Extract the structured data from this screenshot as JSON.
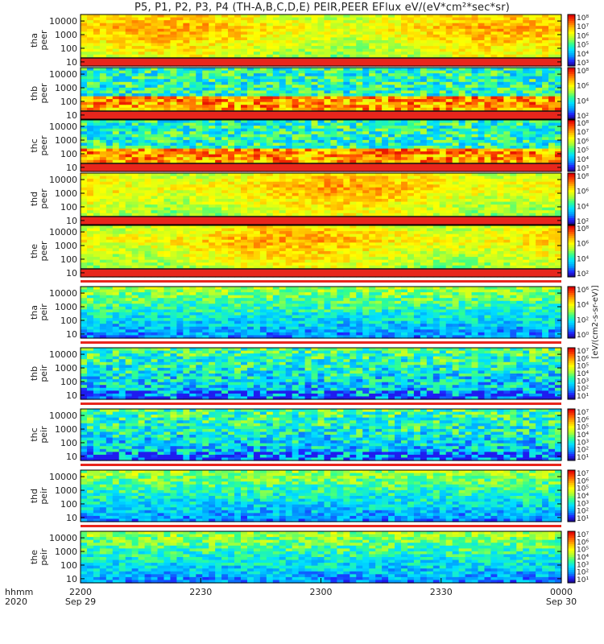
{
  "chart_data": {
    "type": "heatmap",
    "title": "P5, P1, P2, P3, P4 (TH-A,B,C,D,E) PEIR,PEER EFlux eV/(eV*cm²*sec*sr)",
    "colorbar_unit_label": "[eV/(cm2-s-sr-eV)]",
    "y_scale": "log",
    "y_ticks": [
      "10",
      "100",
      "1000",
      "10000"
    ],
    "x_axis": {
      "row_label_1": "hhmm",
      "row_label_2": "2020",
      "ticks": [
        {
          "time": "2200",
          "date": "Sep 29"
        },
        {
          "time": "2230",
          "date": ""
        },
        {
          "time": "2300",
          "date": ""
        },
        {
          "time": "2330",
          "date": ""
        },
        {
          "time": "0000",
          "date": "Sep 30"
        }
      ]
    },
    "panels": [
      {
        "probe": "tha",
        "species": "peer",
        "colorbar_ticks": [
          "10³",
          "10⁴",
          "10⁵",
          "10⁶",
          "10⁷",
          "10⁸"
        ],
        "spacecraft_potential_line": true
      },
      {
        "probe": "thb",
        "species": "peer",
        "colorbar_ticks": [
          "10²",
          "10⁴",
          "10⁶",
          "10⁸"
        ],
        "spacecraft_potential_line": true
      },
      {
        "probe": "thc",
        "species": "peer",
        "colorbar_ticks": [
          "10³",
          "10⁴",
          "10⁵",
          "10⁶",
          "10⁷",
          "10⁸"
        ],
        "spacecraft_potential_line": true
      },
      {
        "probe": "thd",
        "species": "peer",
        "colorbar_ticks": [
          "10²",
          "10⁴",
          "10⁶",
          "10⁸"
        ],
        "spacecraft_potential_line": true
      },
      {
        "probe": "the",
        "species": "peer",
        "colorbar_ticks": [
          "10²",
          "10⁴",
          "10⁶",
          "10⁸"
        ],
        "spacecraft_potential_line": true
      },
      {
        "probe": "tha",
        "species": "peir",
        "colorbar_ticks": [
          "10⁰",
          "10²",
          "10⁴",
          "10⁶"
        ],
        "spacecraft_potential_line": false
      },
      {
        "probe": "thb",
        "species": "peir",
        "colorbar_ticks": [
          "10¹",
          "10²",
          "10³",
          "10⁴",
          "10⁵",
          "10⁶",
          "10⁷"
        ],
        "spacecraft_potential_line": false
      },
      {
        "probe": "thc",
        "species": "peir",
        "colorbar_ticks": [
          "10¹",
          "10²",
          "10³",
          "10⁴",
          "10⁵",
          "10⁶",
          "10⁷"
        ],
        "spacecraft_potential_line": false
      },
      {
        "probe": "thd",
        "species": "peir",
        "colorbar_ticks": [
          "10¹",
          "10²",
          "10³",
          "10⁴",
          "10⁵",
          "10⁶",
          "10⁷"
        ],
        "spacecraft_potential_line": false
      },
      {
        "probe": "the",
        "species": "peir",
        "colorbar_ticks": [
          "10¹",
          "10²",
          "10³",
          "10⁴",
          "10⁵",
          "10⁶",
          "10⁷"
        ],
        "spacecraft_potential_line": false
      }
    ]
  },
  "colors": {
    "spectrum": [
      "#1a0060",
      "#1f1fff",
      "#00a0ff",
      "#00e0ff",
      "#30ff90",
      "#b0ff30",
      "#ffff00",
      "#ffb000",
      "#ff5000",
      "#e00000"
    ],
    "frame": "#000000",
    "gap_red": "#e8261c"
  }
}
